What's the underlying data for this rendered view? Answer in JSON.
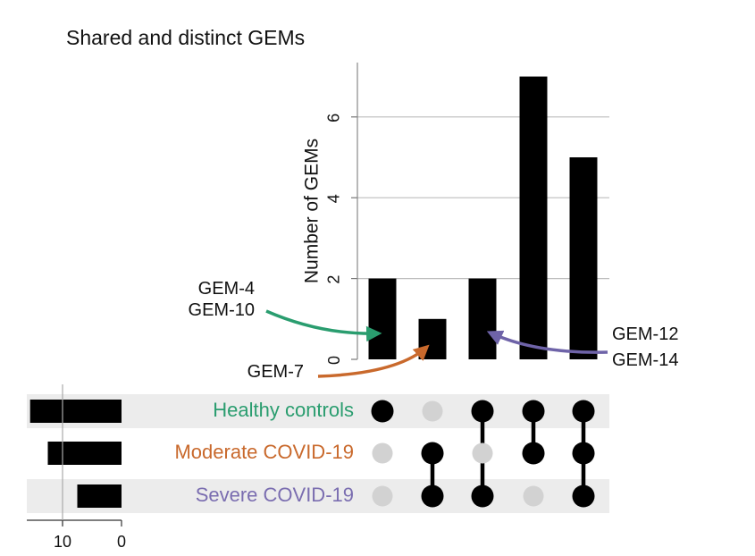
{
  "chart_data": {
    "type": "bar",
    "title": "Shared and distinct GEMs",
    "ylabel": "Number of GEMs",
    "ylim": [
      0,
      7.5
    ],
    "yticks": [
      "0",
      "2",
      "4",
      "6"
    ],
    "grid": true,
    "intersections": [
      {
        "members": [
          0
        ],
        "value": 2
      },
      {
        "members": [
          1,
          2
        ],
        "value": 1
      },
      {
        "members": [
          0,
          2
        ],
        "value": 2
      },
      {
        "members": [
          0,
          1
        ],
        "value": 7
      },
      {
        "members": [
          0,
          1,
          2
        ],
        "value": 5
      }
    ],
    "sets": [
      {
        "name": "Healthy controls",
        "size": 15.5
      },
      {
        "name": "Moderate COVID-19",
        "size": 12.5
      },
      {
        "name": "Severe COVID-19",
        "size": 7.5
      }
    ],
    "set_size_ticks": [
      "10",
      "0"
    ],
    "annotations": [
      {
        "lines": [
          "GEM-4",
          "GEM-10"
        ],
        "target": 0
      },
      {
        "lines": [
          "GEM-7"
        ],
        "target": 1
      },
      {
        "lines": [
          "GEM-12",
          "GEM-14"
        ],
        "target": 2
      }
    ]
  },
  "colors": {
    "set_labels": [
      "#2a9d6f",
      "#c9692c",
      "#7a6db0"
    ],
    "arrows": [
      "#2a9d6f",
      "#c9692c",
      "#6e63a8"
    ],
    "bar": "#000000",
    "dot_active": "#000000",
    "dot_inactive": "#d2d2d2",
    "stripe": "#ececec",
    "grid": "#bdbdbd"
  }
}
